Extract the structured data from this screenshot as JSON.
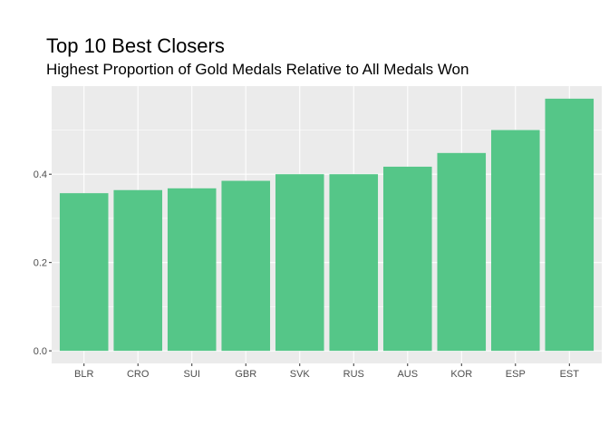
{
  "chart_data": {
    "type": "bar",
    "title": "Top 10 Best Closers",
    "subtitle": "Highest Proportion of Gold Medals Relative to All Medals Won",
    "xlabel": "",
    "ylabel": "",
    "categories": [
      "BLR",
      "CRO",
      "SUI",
      "GBR",
      "SVK",
      "RUS",
      "AUS",
      "KOR",
      "ESP",
      "EST"
    ],
    "values": [
      0.357,
      0.364,
      0.368,
      0.385,
      0.4,
      0.4,
      0.417,
      0.448,
      0.5,
      0.571
    ],
    "ylim": [
      -0.0285,
      0.5995
    ],
    "yticks": [
      0.0,
      0.2,
      0.4
    ],
    "ytick_labels": [
      "0.0",
      "0.2",
      "0.4"
    ],
    "grid": true,
    "bar_color": "#55c688",
    "panel_background": "#ebebeb",
    "grid_color": "#ffffff"
  }
}
